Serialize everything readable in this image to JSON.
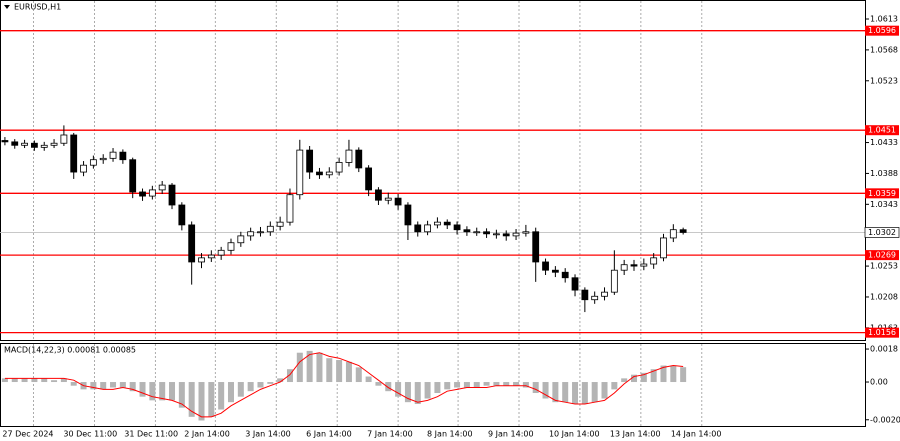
{
  "chart_data": [
    {
      "type": "candlestick",
      "title": "EURUSD,H1",
      "open": [
        1.0436,
        1.0434,
        1.0429,
        1.0432,
        1.0426,
        1.0429,
        1.0432,
        1.0444,
        1.039,
        1.04,
        1.0408,
        1.041,
        1.0419,
        1.0408,
        1.0361,
        1.0355,
        1.0364,
        1.0371,
        1.0342,
        1.0313,
        1.0259,
        1.0265,
        1.0269,
        1.0276,
        1.0287,
        1.0297,
        1.0303,
        1.0303,
        1.0311,
        1.0317,
        1.0357,
        1.0422,
        1.039,
        1.0386,
        1.039,
        1.0404,
        1.0422,
        1.0396,
        1.0364,
        1.0349,
        1.0352,
        1.0342,
        1.0313,
        1.0303,
        1.0313,
        1.0317,
        1.0313,
        1.0306,
        1.0303,
        1.0303,
        1.03,
        1.03,
        1.0297,
        1.0301,
        1.0303,
        1.0259,
        1.0247,
        1.0244,
        1.0236,
        1.0218,
        1.0204,
        1.0209,
        1.0215,
        1.0247,
        1.0255,
        1.0253,
        1.0256,
        1.0265,
        1.0294,
        1.0306
      ],
      "high": [
        1.0441,
        1.0438,
        1.0437,
        1.0436,
        1.0434,
        1.0438,
        1.0458,
        1.0447,
        1.0406,
        1.0414,
        1.0416,
        1.0425,
        1.0423,
        1.0411,
        1.0366,
        1.037,
        1.0377,
        1.0374,
        1.0346,
        1.0318,
        1.0272,
        1.0276,
        1.0281,
        1.0293,
        1.0303,
        1.0309,
        1.031,
        1.0318,
        1.0325,
        1.0366,
        1.0437,
        1.0428,
        1.0396,
        1.0397,
        1.0411,
        1.0437,
        1.0426,
        1.04,
        1.0368,
        1.036,
        1.0358,
        1.0346,
        1.0318,
        1.0319,
        1.0324,
        1.0321,
        1.0318,
        1.0311,
        1.0309,
        1.0308,
        1.0306,
        1.0305,
        1.0307,
        1.0313,
        1.0309,
        1.0264,
        1.0253,
        1.025,
        1.0241,
        1.0222,
        1.0216,
        1.0222,
        1.0276,
        1.0262,
        1.0262,
        1.0264,
        1.0272,
        1.03,
        1.0314,
        1.0309
      ],
      "low": [
        1.0429,
        1.0424,
        1.0425,
        1.0421,
        1.0421,
        1.0425,
        1.0428,
        1.038,
        1.0384,
        1.0395,
        1.0402,
        1.0405,
        1.0402,
        1.0352,
        1.0348,
        1.035,
        1.0358,
        1.0336,
        1.0305,
        1.0226,
        1.025,
        1.0259,
        1.0262,
        1.027,
        1.0281,
        1.029,
        1.0296,
        1.0297,
        1.0305,
        1.0312,
        1.035,
        1.038,
        1.038,
        1.0381,
        1.0385,
        1.0398,
        1.039,
        1.0355,
        1.0342,
        1.0343,
        1.0335,
        1.0291,
        1.0296,
        1.0298,
        1.0308,
        1.0307,
        1.0299,
        1.0297,
        1.0297,
        1.0294,
        1.0293,
        1.029,
        1.0291,
        1.0296,
        1.023,
        1.024,
        1.0237,
        1.0229,
        1.0209,
        1.0186,
        1.0198,
        1.0203,
        1.0211,
        1.024,
        1.0246,
        1.0247,
        1.0249,
        1.026,
        1.0288,
        1.0299
      ],
      "close": [
        1.0434,
        1.0429,
        1.0432,
        1.0426,
        1.0429,
        1.0432,
        1.0444,
        1.039,
        1.04,
        1.0408,
        1.041,
        1.0419,
        1.0408,
        1.0361,
        1.0355,
        1.0364,
        1.0371,
        1.0342,
        1.0313,
        1.0259,
        1.0265,
        1.0269,
        1.0276,
        1.0287,
        1.0297,
        1.0303,
        1.0303,
        1.0311,
        1.0317,
        1.0357,
        1.0422,
        1.039,
        1.0386,
        1.039,
        1.0404,
        1.0422,
        1.0396,
        1.0364,
        1.0349,
        1.0352,
        1.0342,
        1.0313,
        1.0303,
        1.0313,
        1.0317,
        1.0313,
        1.0306,
        1.0303,
        1.0303,
        1.03,
        1.03,
        1.0297,
        1.0301,
        1.0303,
        1.0259,
        1.0247,
        1.0244,
        1.0236,
        1.0218,
        1.0204,
        1.0209,
        1.0215,
        1.0247,
        1.0255,
        1.0253,
        1.0256,
        1.0265,
        1.0294,
        1.0306,
        1.0302
      ],
      "ylim": [
        1.01453,
        1.06407
      ],
      "yticks": [
        1.0613,
        1.0568,
        1.0523,
        1.0433,
        1.0388,
        1.0343,
        1.0253,
        1.0208,
        1.0163
      ],
      "levels": [
        1.0596,
        1.0451,
        1.0359,
        1.0269,
        1.0156
      ],
      "level_color": "#ff0000",
      "current_price": 1.0302,
      "xlim": [
        -0.5,
        87.5
      ],
      "xticks": [
        {
          "value": 2.9,
          "label": "27 Dec 2024"
        },
        {
          "value": 9.1,
          "label": "30 Dec 11:00"
        },
        {
          "value": 15.3,
          "label": "31 Dec 11:00"
        },
        {
          "value": 21.4,
          "label": "2 Jan 14:00"
        },
        {
          "value": 27.6,
          "label": "3 Jan 14:00"
        },
        {
          "value": 33.8,
          "label": "6 Jan 14:00"
        },
        {
          "value": 40.0,
          "label": "7 Jan 14:00"
        },
        {
          "value": 46.1,
          "label": "8 Jan 14:00"
        },
        {
          "value": 52.3,
          "label": "9 Jan 14:00"
        },
        {
          "value": 58.5,
          "label": "10 Jan 14:00"
        },
        {
          "value": 64.7,
          "label": "13 Jan 14:00"
        },
        {
          "value": 70.9,
          "label": "14 Jan 14:00"
        }
      ]
    },
    {
      "type": "macd",
      "title": "MACD(14,22,3) 0.00081 0.00085",
      "histogram": [
        0.0002,
        0.0002,
        0.0002,
        0.0002,
        0.0002,
        0.0001,
        0.0002,
        -0.0002,
        -0.0004,
        -0.0004,
        -0.0004,
        -0.0003,
        -0.0003,
        -0.0005,
        -0.0008,
        -0.001,
        -0.001,
        -0.001,
        -0.0014,
        -0.0019,
        -0.0021,
        -0.0019,
        -0.0015,
        -0.0011,
        -0.0008,
        -0.0005,
        -0.0003,
        -0.0001,
        0.0002,
        0.0007,
        0.0016,
        0.0017,
        0.0016,
        0.0013,
        0.0012,
        0.0011,
        0.0008,
        0.0003,
        -0.0002,
        -0.0005,
        -0.0008,
        -0.0011,
        -0.0012,
        -0.0009,
        -0.0006,
        -0.0004,
        -0.0003,
        -0.0003,
        -0.0003,
        -0.0002,
        -0.0002,
        -0.0002,
        -0.0002,
        -0.0003,
        -0.0006,
        -0.0009,
        -0.0011,
        -0.0011,
        -0.0012,
        -0.0012,
        -0.0011,
        -0.0009,
        -0.0004,
        0.0002,
        0.0004,
        0.0005,
        0.0007,
        0.0009,
        0.0009,
        0.00081
      ],
      "signal": [
        0.0002,
        0.0002,
        0.0002,
        0.0002,
        0.0002,
        0.0002,
        0.0002,
        0.0001,
        -0.0002,
        -0.0003,
        -0.0004,
        -0.0004,
        -0.0003,
        -0.0004,
        -0.0006,
        -0.0008,
        -0.0009,
        -0.001,
        -0.0012,
        -0.0016,
        -0.0019,
        -0.0019,
        -0.0017,
        -0.0013,
        -0.001,
        -0.0007,
        -0.0004,
        -0.0002,
        0.0,
        0.0004,
        0.0011,
        0.0015,
        0.0016,
        0.0014,
        0.0013,
        0.0011,
        0.0009,
        0.0005,
        0.0001,
        -0.0003,
        -0.0006,
        -0.0009,
        -0.0011,
        -0.001,
        -0.0008,
        -0.0005,
        -0.0004,
        -0.0003,
        -0.0003,
        -0.0003,
        -0.0002,
        -0.0002,
        -0.0002,
        -0.0002,
        -0.0004,
        -0.0007,
        -0.001,
        -0.0011,
        -0.0012,
        -0.0012,
        -0.0011,
        -0.001,
        -0.0006,
        -0.0001,
        0.0003,
        0.0004,
        0.0006,
        0.0008,
        0.0009,
        0.00085
      ],
      "histogram_color": "#b4b4b4",
      "signal_color": "#ff0000",
      "ylim": [
        -0.0024,
        0.00213
      ],
      "yticks": [
        0.0018,
        {
          "value": 0,
          "label": "0.00"
        },
        -0.00206
      ],
      "xlim": [
        -0.5,
        87.5
      ]
    }
  ]
}
